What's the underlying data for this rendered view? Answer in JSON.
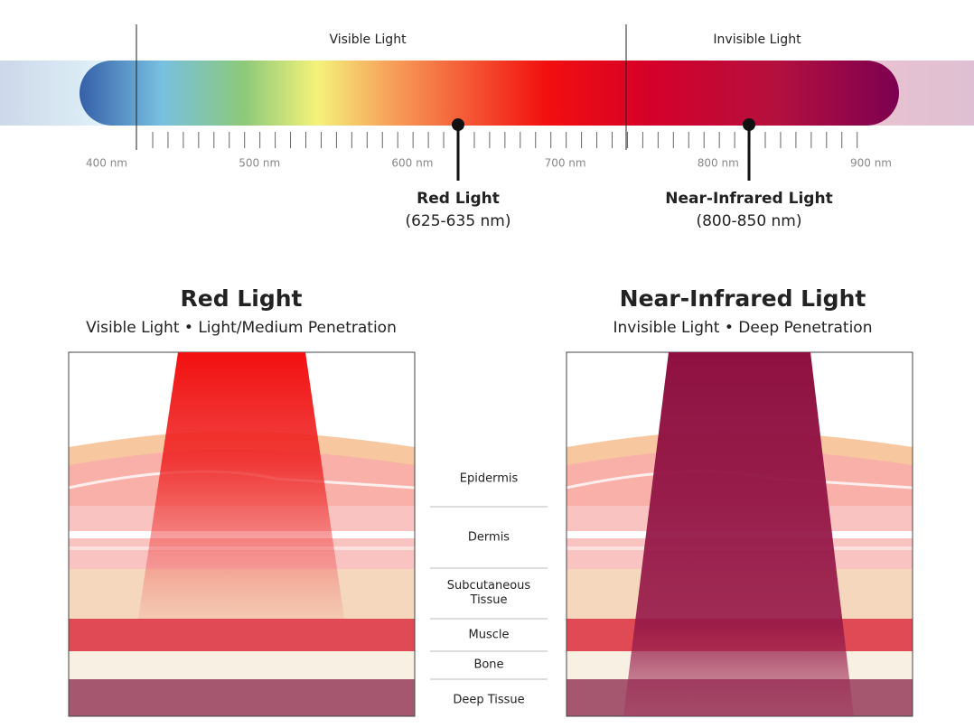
{
  "spectrum": {
    "regions": [
      "Visible Light",
      "Invisible Light"
    ],
    "tick_labels": [
      "400 nm",
      "500 nm",
      "600 nm",
      "700 nm",
      "800 nm",
      "900 nm"
    ],
    "markers": [
      {
        "label": "Red Light",
        "range": "(625-635 nm)"
      },
      {
        "label": "Near-Infrared Light",
        "range": "(800-850 nm)"
      }
    ]
  },
  "panels": [
    {
      "title": "Red Light",
      "subtitle": "Visible Light • Light/Medium Penetration"
    },
    {
      "title": "Near-Infrared Light",
      "subtitle": "Invisible Light • Deep Penetration"
    }
  ],
  "layers": [
    "Epidermis",
    "Dermis",
    "Subcutaneous Tissue",
    "Muscle",
    "Bone",
    "Deep Tissue"
  ]
}
